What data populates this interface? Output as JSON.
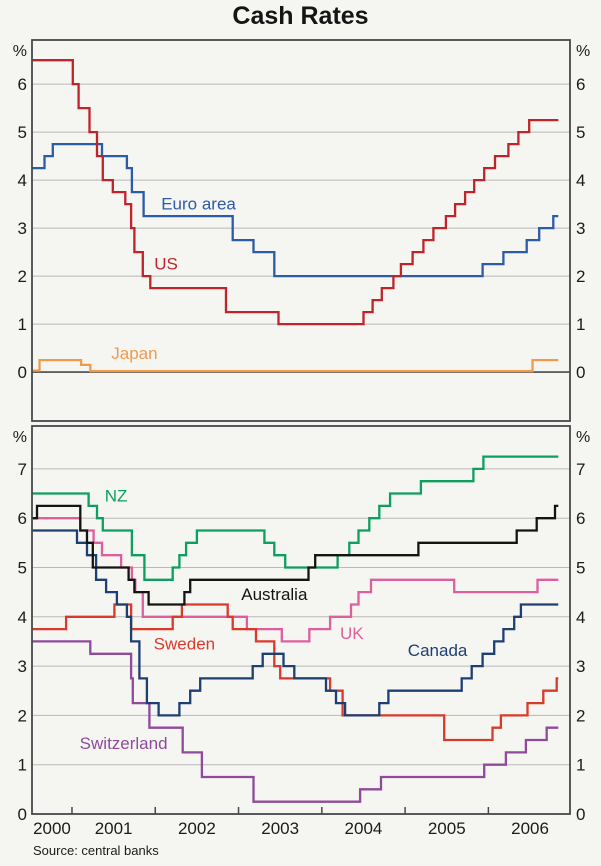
{
  "title": "Cash Rates",
  "source": "Source: central banks",
  "chart_data": {
    "type": "line",
    "subtype": "step",
    "title": "Cash Rates",
    "ylabel": "%",
    "unit": "%",
    "grid": true,
    "legend_position": "inline-labels",
    "x_domain": [
      2000.52,
      2006.98
    ],
    "x_data_end": 2006.84,
    "x_ticks": [
      2001,
      2002,
      2003,
      2004,
      2005,
      2006
    ],
    "x_tick_labels": [
      {
        "text": "2000",
        "t": 2000.76
      },
      {
        "text": "2001",
        "t": 2001.5
      },
      {
        "text": "2002",
        "t": 2002.5
      },
      {
        "text": "2003",
        "t": 2003.5
      },
      {
        "text": "2004",
        "t": 2004.5
      },
      {
        "text": "2005",
        "t": 2005.5
      },
      {
        "text": "2006",
        "t": 2006.5
      }
    ],
    "colors": {
      "frame": "#47484a",
      "grid": "#b9b9b9",
      "text": "#1b1b1b"
    },
    "panels": [
      {
        "name": "top",
        "y_domain": [
          -1.02,
          6.92
        ],
        "gridlines": [
          0,
          1,
          2,
          3,
          4,
          5,
          6
        ],
        "y_tick_labels": [
          0,
          1,
          2,
          3,
          4,
          5,
          6
        ],
        "zero_line_dark": true,
        "series": [
          {
            "name": "Japan",
            "color": "#ef9b4d",
            "label": {
              "text": "Japan",
              "t": 2001.75,
              "v": 0.4
            },
            "points": [
              [
                2000.52,
                0.03
              ],
              [
                2000.61,
                0.25
              ],
              [
                2001.11,
                0.15
              ],
              [
                2001.22,
                0.02
              ],
              [
                2006.53,
                0.25
              ]
            ]
          },
          {
            "name": "Euro area",
            "color": "#2d5ca6",
            "label": {
              "text": "Euro area",
              "t": 2002.52,
              "v": 3.51
            },
            "points": [
              [
                2000.52,
                4.25
              ],
              [
                2000.67,
                4.5
              ],
              [
                2000.77,
                4.75
              ],
              [
                2001.36,
                4.5
              ],
              [
                2001.66,
                4.25
              ],
              [
                2001.72,
                3.75
              ],
              [
                2001.86,
                3.25
              ],
              [
                2002.93,
                2.75
              ],
              [
                2003.18,
                2.5
              ],
              [
                2003.43,
                2.0
              ],
              [
                2005.93,
                2.25
              ],
              [
                2006.18,
                2.5
              ],
              [
                2006.46,
                2.75
              ],
              [
                2006.61,
                3.0
              ],
              [
                2006.78,
                3.25
              ]
            ]
          },
          {
            "name": "US",
            "color": "#c0242b",
            "label": {
              "text": "US",
              "t": 2002.13,
              "v": 2.26
            },
            "points": [
              [
                2000.52,
                6.5
              ],
              [
                2001.01,
                6.0
              ],
              [
                2001.08,
                5.5
              ],
              [
                2001.21,
                5.0
              ],
              [
                2001.3,
                4.5
              ],
              [
                2001.37,
                4.0
              ],
              [
                2001.49,
                3.75
              ],
              [
                2001.64,
                3.5
              ],
              [
                2001.71,
                3.0
              ],
              [
                2001.75,
                2.5
              ],
              [
                2001.85,
                2.0
              ],
              [
                2001.94,
                1.75
              ],
              [
                2002.85,
                1.25
              ],
              [
                2003.48,
                1.0
              ],
              [
                2004.5,
                1.25
              ],
              [
                2004.61,
                1.5
              ],
              [
                2004.72,
                1.75
              ],
              [
                2004.86,
                2.0
              ],
              [
                2004.95,
                2.25
              ],
              [
                2005.09,
                2.5
              ],
              [
                2005.22,
                2.75
              ],
              [
                2005.34,
                3.0
              ],
              [
                2005.49,
                3.25
              ],
              [
                2005.6,
                3.5
              ],
              [
                2005.72,
                3.75
              ],
              [
                2005.83,
                4.0
              ],
              [
                2005.95,
                4.25
              ],
              [
                2006.08,
                4.5
              ],
              [
                2006.24,
                4.75
              ],
              [
                2006.36,
                5.0
              ],
              [
                2006.49,
                5.25
              ]
            ]
          }
        ]
      },
      {
        "name": "bottom",
        "y_domain": [
          0,
          7.87
        ],
        "gridlines": [
          1,
          2,
          3,
          4,
          5,
          6,
          7
        ],
        "y_tick_labels": [
          0,
          1,
          2,
          3,
          4,
          5,
          6,
          7
        ],
        "zero_line_dark": false,
        "series": [
          {
            "name": "UK",
            "color": "#df5e9d",
            "label": {
              "text": "UK",
              "t": 2004.36,
              "v": 3.67
            },
            "points": [
              [
                2000.52,
                6.0
              ],
              [
                2001.1,
                5.75
              ],
              [
                2001.26,
                5.5
              ],
              [
                2001.36,
                5.25
              ],
              [
                2001.59,
                5.0
              ],
              [
                2001.72,
                4.75
              ],
              [
                2001.76,
                4.5
              ],
              [
                2001.85,
                4.0
              ],
              [
                2003.1,
                3.75
              ],
              [
                2003.52,
                3.5
              ],
              [
                2003.85,
                3.75
              ],
              [
                2004.1,
                4.0
              ],
              [
                2004.35,
                4.25
              ],
              [
                2004.44,
                4.5
              ],
              [
                2004.59,
                4.75
              ],
              [
                2005.59,
                4.5
              ],
              [
                2006.59,
                4.75
              ]
            ]
          },
          {
            "name": "Sweden",
            "color": "#d93b2b",
            "label": {
              "text": "Sweden",
              "t": 2002.35,
              "v": 3.46
            },
            "points": [
              [
                2000.52,
                3.75
              ],
              [
                2000.93,
                4.0
              ],
              [
                2001.51,
                4.25
              ],
              [
                2001.71,
                3.75
              ],
              [
                2002.21,
                4.0
              ],
              [
                2002.32,
                4.25
              ],
              [
                2002.87,
                4.0
              ],
              [
                2002.93,
                3.75
              ],
              [
                2003.21,
                3.5
              ],
              [
                2003.43,
                3.0
              ],
              [
                2003.5,
                2.75
              ],
              [
                2004.1,
                2.5
              ],
              [
                2004.25,
                2.0
              ],
              [
                2005.47,
                1.5
              ],
              [
                2006.05,
                1.75
              ],
              [
                2006.15,
                2.0
              ],
              [
                2006.47,
                2.25
              ],
              [
                2006.66,
                2.5
              ],
              [
                2006.82,
                2.75
              ]
            ]
          },
          {
            "name": "Switzerland",
            "color": "#8f4a9c",
            "label": {
              "text": "Switzerland",
              "t": 2001.62,
              "v": 1.44
            },
            "points": [
              [
                2000.52,
                3.5
              ],
              [
                2001.22,
                3.25
              ],
              [
                2001.71,
                2.75
              ],
              [
                2001.73,
                2.25
              ],
              [
                2001.93,
                1.75
              ],
              [
                2002.33,
                1.25
              ],
              [
                2002.56,
                0.75
              ],
              [
                2003.18,
                0.25
              ],
              [
                2004.46,
                0.5
              ],
              [
                2004.71,
                0.75
              ],
              [
                2005.95,
                1.0
              ],
              [
                2006.21,
                1.25
              ],
              [
                2006.45,
                1.5
              ],
              [
                2006.7,
                1.75
              ]
            ]
          },
          {
            "name": "Canada",
            "color": "#1e3f72",
            "label": {
              "text": "Canada",
              "t": 2005.39,
              "v": 3.33
            },
            "points": [
              [
                2000.52,
                5.75
              ],
              [
                2001.06,
                5.5
              ],
              [
                2001.18,
                5.25
              ],
              [
                2001.29,
                4.75
              ],
              [
                2001.41,
                4.5
              ],
              [
                2001.54,
                4.25
              ],
              [
                2001.66,
                4.0
              ],
              [
                2001.71,
                3.5
              ],
              [
                2001.81,
                2.75
              ],
              [
                2001.9,
                2.25
              ],
              [
                2002.04,
                2.0
              ],
              [
                2002.29,
                2.25
              ],
              [
                2002.42,
                2.5
              ],
              [
                2002.54,
                2.75
              ],
              [
                2003.17,
                3.0
              ],
              [
                2003.29,
                3.25
              ],
              [
                2003.54,
                3.0
              ],
              [
                2003.67,
                2.75
              ],
              [
                2004.05,
                2.5
              ],
              [
                2004.17,
                2.25
              ],
              [
                2004.28,
                2.0
              ],
              [
                2004.69,
                2.25
              ],
              [
                2004.8,
                2.5
              ],
              [
                2005.68,
                2.75
              ],
              [
                2005.8,
                3.0
              ],
              [
                2005.93,
                3.25
              ],
              [
                2006.07,
                3.5
              ],
              [
                2006.18,
                3.75
              ],
              [
                2006.31,
                4.0
              ],
              [
                2006.39,
                4.25
              ]
            ]
          },
          {
            "name": "NZ",
            "color": "#0ca05e",
            "label": {
              "text": "NZ",
              "t": 2001.53,
              "v": 6.46
            },
            "points": [
              [
                2000.52,
                6.5
              ],
              [
                2001.2,
                6.25
              ],
              [
                2001.3,
                6.0
              ],
              [
                2001.37,
                5.75
              ],
              [
                2001.72,
                5.25
              ],
              [
                2001.87,
                4.75
              ],
              [
                2002.21,
                5.0
              ],
              [
                2002.29,
                5.25
              ],
              [
                2002.37,
                5.5
              ],
              [
                2002.5,
                5.75
              ],
              [
                2003.31,
                5.5
              ],
              [
                2003.43,
                5.25
              ],
              [
                2003.56,
                5.0
              ],
              [
                2004.19,
                5.25
              ],
              [
                2004.33,
                5.5
              ],
              [
                2004.44,
                5.75
              ],
              [
                2004.57,
                6.0
              ],
              [
                2004.69,
                6.25
              ],
              [
                2004.82,
                6.5
              ],
              [
                2005.19,
                6.75
              ],
              [
                2005.82,
                7.0
              ],
              [
                2005.94,
                7.25
              ]
            ]
          },
          {
            "name": "Australia",
            "color": "#141414",
            "label": {
              "text": "Australia",
              "t": 2003.43,
              "v": 4.46
            },
            "points": [
              [
                2000.52,
                6.0
              ],
              [
                2000.58,
                6.25
              ],
              [
                2001.1,
                5.75
              ],
              [
                2001.18,
                5.5
              ],
              [
                2001.25,
                5.0
              ],
              [
                2001.68,
                4.75
              ],
              [
                2001.75,
                4.5
              ],
              [
                2001.92,
                4.25
              ],
              [
                2002.35,
                4.5
              ],
              [
                2002.42,
                4.75
              ],
              [
                2003.84,
                5.0
              ],
              [
                2003.92,
                5.25
              ],
              [
                2005.16,
                5.5
              ],
              [
                2006.34,
                5.75
              ],
              [
                2006.58,
                6.0
              ],
              [
                2006.8,
                6.25
              ]
            ]
          }
        ]
      }
    ]
  }
}
